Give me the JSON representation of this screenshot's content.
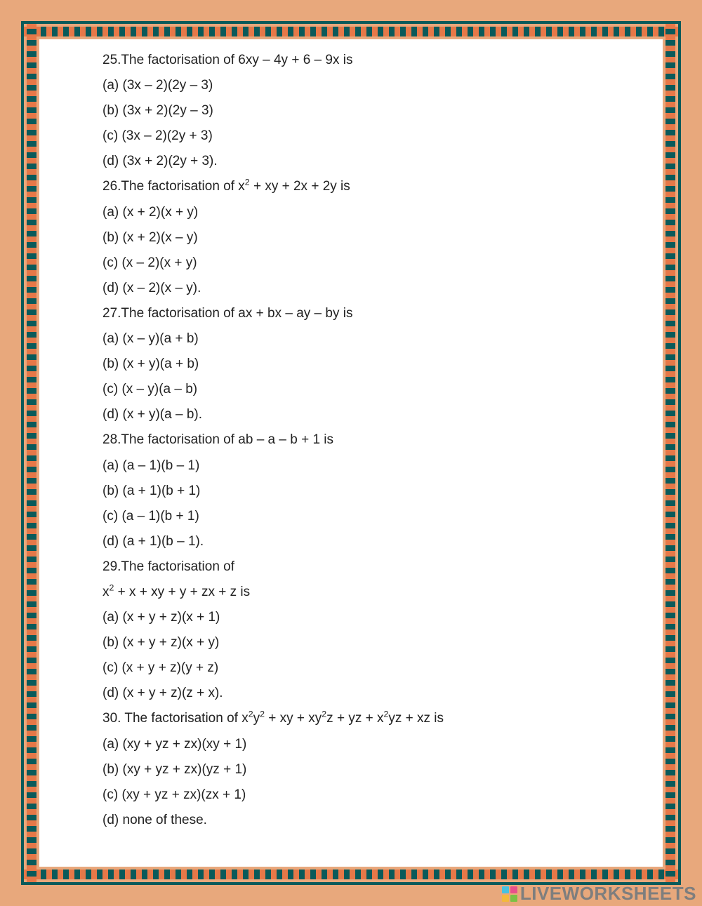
{
  "styling": {
    "page_bg": "#e8a87c",
    "sheet_bg": "#ffffff",
    "border_dark": "#0a5a5a",
    "border_tick": "#e67848",
    "text_color": "#222222",
    "font_family": "Tahoma, Geneva, sans-serif",
    "font_size_pt": 14,
    "line_height": 1.9
  },
  "watermark": {
    "text": "LIVEWORKSHEETS",
    "logo_colors": [
      "#47c2e0",
      "#e8508c",
      "#f4b93c",
      "#7ac145"
    ]
  },
  "questions": [
    {
      "number": 25,
      "prompt": "The factorisation of 6xy – 4y + 6 – 9x is",
      "options": {
        "a": "(3x – 2)(2y – 3)",
        "b": "(3x + 2)(2y – 3)",
        "c": "(3x – 2)(2y + 3)",
        "d": "(3x + 2)(2y + 3)."
      }
    },
    {
      "number": 26,
      "prompt_html": "The factorisation of x<sup>2</sup> + xy + 2x + 2y is",
      "options": {
        "a": "(x + 2)(x + y)",
        "b": "(x + 2)(x – y)",
        "c": "(x – 2)(x + y)",
        "d": "(x – 2)(x – y)."
      }
    },
    {
      "number": 27,
      "prompt": "The factorisation of ax + bx – ay – by is",
      "options": {
        "a": "(x – y)(a + b)",
        "b": "(x + y)(a + b)",
        "c": "(x – y)(a – b)",
        "d": "(x + y)(a – b)."
      }
    },
    {
      "number": 28,
      "prompt": "The factorisation of ab – a – b + 1 is",
      "options": {
        "a": "(a – 1)(b – 1)",
        "b": "(a + 1)(b + 1)",
        "c": "(a – 1)(b + 1)",
        "d": "(a + 1)(b – 1)."
      }
    },
    {
      "number": 29,
      "prompt_line1": "The factorisation of",
      "prompt_line2_html": "x<sup>2</sup> + x + xy + y + zx + z is",
      "options": {
        "a": "(x + y + z)(x + 1)",
        "b": "(x + y + z)(x + y)",
        "c": "(x + y + z)(y + z)",
        "d": "(x + y + z)(z + x)."
      }
    },
    {
      "number": 30,
      "prompt_html": " The factorisation of x<sup>2</sup>y<sup>2</sup> + xy + xy<sup>2</sup>z + yz + x<sup>2</sup>yz + xz is",
      "options": {
        "a": "(xy + yz + zx)(xy + 1)",
        "b": "(xy + yz + zx)(yz + 1)",
        "c": "(xy + yz + zx)(zx + 1)",
        "d": "none of these."
      }
    }
  ]
}
